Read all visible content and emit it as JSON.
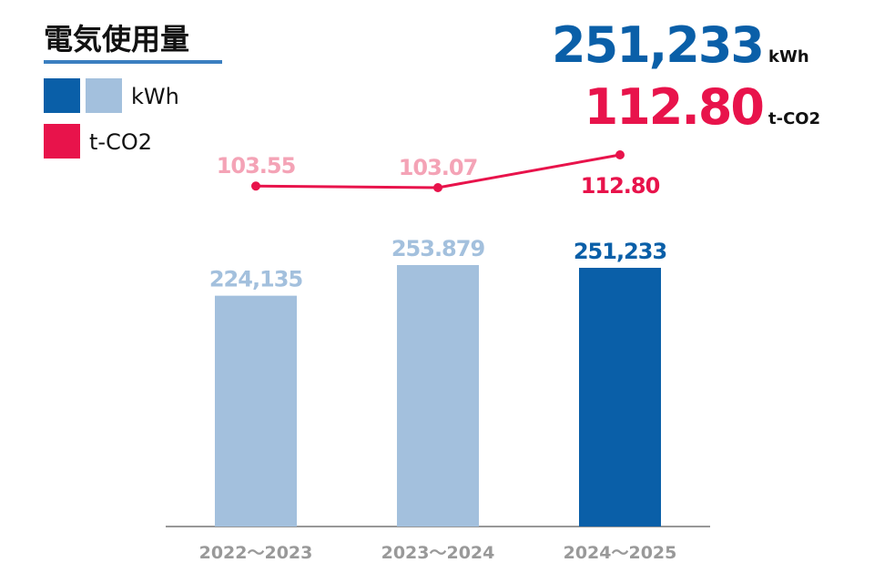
{
  "chart_data": {
    "type": "bar",
    "title": "電気使用量",
    "headline": [
      {
        "value": "251,233",
        "unit": "kWh",
        "color": "#0a5fa8"
      },
      {
        "value": "112.80",
        "unit": "t-CO2",
        "color": "#e8134b"
      }
    ],
    "legend": [
      {
        "name": "kWh",
        "colors": [
          "#0a5fa8",
          "#a3c0dd"
        ]
      },
      {
        "name": "t-CO2",
        "colors": [
          "#e8134b"
        ]
      }
    ],
    "categories": [
      "2022～2023",
      "2023～2024",
      "2024～2025"
    ],
    "series": [
      {
        "name": "kWh",
        "type": "bar",
        "values": [
          224135,
          253879,
          251233
        ],
        "value_labels": [
          "224,135",
          "253.879",
          "251,233"
        ],
        "colors": [
          "#a3c0dd",
          "#a3c0dd",
          "#0a5fa8"
        ]
      },
      {
        "name": "t-CO2",
        "type": "line",
        "color": "#e8134b",
        "values": [
          103.55,
          103.07,
          112.8
        ],
        "value_labels": [
          "103.55",
          "103.07",
          "112.80"
        ],
        "label_colors": [
          "#f4a3b6",
          "#f4a3b6",
          "#e8134b"
        ]
      }
    ]
  }
}
